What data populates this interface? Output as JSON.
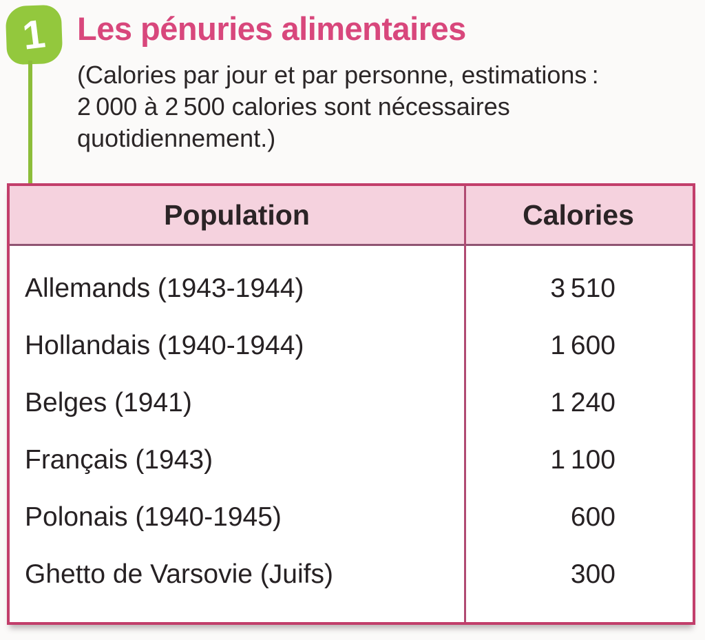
{
  "figure": {
    "number": "1",
    "title": "Les pénuries alimentaires",
    "subtitle": "(Calories par jour et par personne, estimations :\n2 000 à 2 500 calories sont nécessaires\nquotidiennement.)"
  },
  "colors": {
    "accent_pink": "#d8477c",
    "table_border": "#c23e6b",
    "header_background": "#f5d2de",
    "badge_green": "#93c83d",
    "stem_green": "#8cbd3a",
    "text": "#2b2627"
  },
  "table": {
    "headers": [
      "Population",
      "Calories"
    ],
    "rows": [
      {
        "population": "Allemands (1943-1944)",
        "calories": "3 510"
      },
      {
        "population": "Hollandais (1940-1944)",
        "calories": "1 600"
      },
      {
        "population": "Belges (1941)",
        "calories": "1 240"
      },
      {
        "population": "Français (1943)",
        "calories": "1 100"
      },
      {
        "population": "Polonais (1940-1945)",
        "calories": "600"
      },
      {
        "population": "Ghetto de Varsovie (Juifs)",
        "calories": "300"
      }
    ]
  },
  "chart_data": {
    "type": "table",
    "title": "Les pénuries alimentaires",
    "note": "Calories par jour et par personne, estimations : 2 000 à 2 500 calories sont nécessaires quotidiennement.",
    "columns": [
      "Population",
      "Calories"
    ],
    "categories": [
      "Allemands (1943-1944)",
      "Hollandais (1940-1944)",
      "Belges (1941)",
      "Français (1943)",
      "Polonais (1940-1945)",
      "Ghetto de Varsovie (Juifs)"
    ],
    "values": [
      3510,
      1600,
      1240,
      1100,
      600,
      300
    ]
  }
}
